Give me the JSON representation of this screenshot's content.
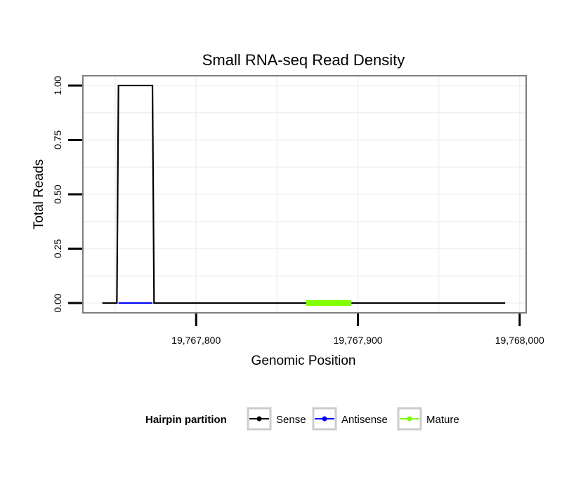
{
  "chart_data": {
    "type": "line",
    "title": "Small RNA-seq Read Density",
    "xlabel": "Genomic Position",
    "ylabel": "Total Reads",
    "xlim": [
      19767730,
      19768004
    ],
    "ylim": [
      -0.045,
      1.045
    ],
    "x_ticks": [
      19767800,
      19767900,
      19768000
    ],
    "x_tick_labels": [
      "19,767,800",
      "19,767,900",
      "19,768,000"
    ],
    "y_ticks": [
      0,
      0.25,
      0.5,
      0.75,
      1.0
    ],
    "y_tick_labels": [
      "0.00",
      "0.25",
      "0.50",
      "0.75",
      "1.00"
    ],
    "grid": true,
    "series": [
      {
        "name": "Sense",
        "color": "#000000",
        "x": [
          19767742,
          19767751,
          19767752,
          19767773,
          19767774,
          19767991
        ],
        "y": [
          0,
          0,
          1,
          1,
          0,
          0
        ]
      },
      {
        "name": "Antisense",
        "color": "#0000ff",
        "x": [
          19767752,
          19767773
        ],
        "y": [
          0,
          0
        ]
      },
      {
        "name": "Mature",
        "color": "#80ff00",
        "x": [
          19767868,
          19767896
        ],
        "y": [
          0,
          0
        ]
      }
    ],
    "legend": {
      "title": "Hairpin partition",
      "position": "bottom",
      "entries": [
        "Sense",
        "Antisense",
        "Mature"
      ]
    }
  }
}
